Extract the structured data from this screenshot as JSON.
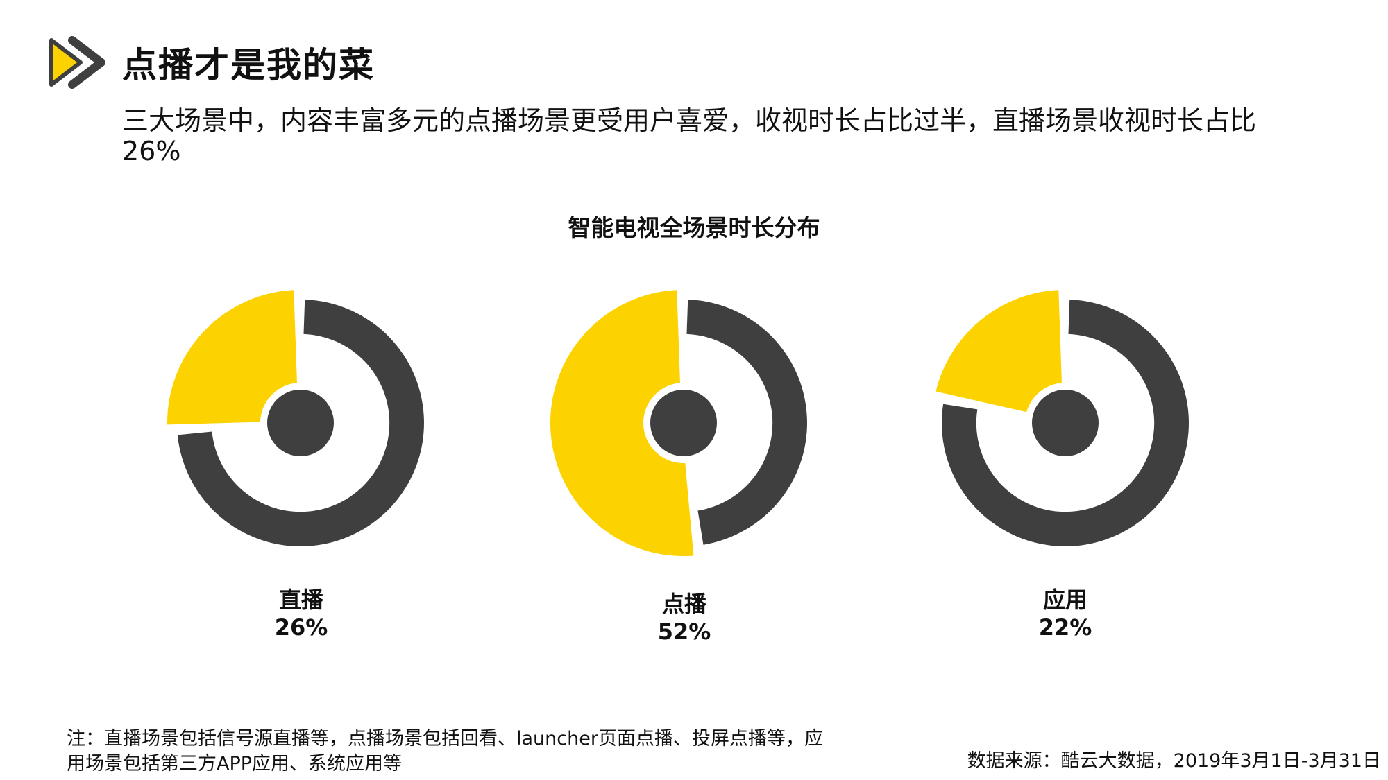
{
  "header": {
    "title": "点播才是我的菜",
    "subtitle": "三大场景中，内容丰富多元的点播场景更受用户喜爱，收视时长占比过半，直播场景收视时长占比26%"
  },
  "colors": {
    "accent": "#FCD200",
    "dark": "#3F3F3F",
    "text": "#111111"
  },
  "icons": {
    "logo": "play-arrows-icon"
  },
  "chart_data": {
    "type": "pie",
    "title": "智能电视全场景时长分布",
    "style": "donut-with-exploded-highlight",
    "series": [
      {
        "name": "直播",
        "value": 26,
        "value_label": "26%"
      },
      {
        "name": "点播",
        "value": 52,
        "value_label": "52%"
      },
      {
        "name": "应用",
        "value": 22,
        "value_label": "22%"
      }
    ]
  },
  "footer": {
    "note": "注：直播场景包括信号源直播等，点播场景包括回看、launcher页面点播、投屏点播等，应用场景包括第三方APP应用、系统应用等",
    "source": "数据来源：酷云大数据，2019年3月1日-3月31日"
  }
}
